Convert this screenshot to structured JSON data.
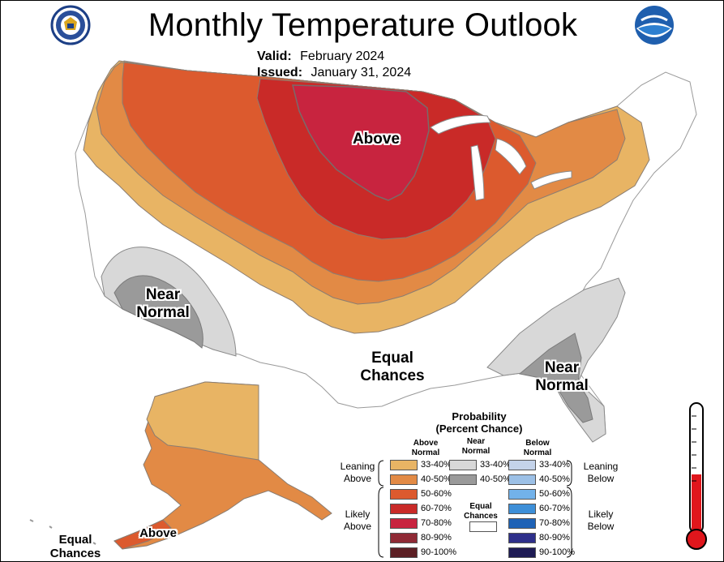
{
  "title": "Monthly Temperature Outlook",
  "valid_label": "Valid:",
  "valid_value": "February 2024",
  "issued_label": "Issued:",
  "issued_value": "January 31, 2024",
  "regions": {
    "above_main": "Above",
    "near_normal_west": "Near Normal",
    "near_normal_southeast": "Near Normal",
    "equal_chances_main": "Equal Chances",
    "equal_chances_alaska": "Equal Chances",
    "above_alaska": "Above"
  },
  "legend": {
    "title": "Probability",
    "subtitle": "(Percent Chance)",
    "col_above": "Above Normal",
    "col_near": "Near Normal",
    "col_below": "Below Normal",
    "leaning_above": "Leaning Above",
    "likely_above": "Likely Above",
    "leaning_below": "Leaning Below",
    "likely_below": "Likely Below",
    "equal_chances": "Equal Chances",
    "above_rows": [
      {
        "range": "33-40%",
        "color": "#e8b464"
      },
      {
        "range": "40-50%",
        "color": "#e28a45"
      },
      {
        "range": "50-60%",
        "color": "#dc5a2e"
      },
      {
        "range": "60-70%",
        "color": "#c92a28"
      },
      {
        "range": "70-80%",
        "color": "#c8243f"
      },
      {
        "range": "80-90%",
        "color": "#8f2a35"
      },
      {
        "range": "90-100%",
        "color": "#5c1f24"
      }
    ],
    "near_rows": [
      {
        "range": "33-40%",
        "color": "#d8d8d8"
      },
      {
        "range": "40-50%",
        "color": "#9a9a9a"
      }
    ],
    "below_rows": [
      {
        "range": "33-40%",
        "color": "#c4d3ea"
      },
      {
        "range": "40-50%",
        "color": "#9cc0e6"
      },
      {
        "range": "50-60%",
        "color": "#72b2ea"
      },
      {
        "range": "60-70%",
        "color": "#3d8fd8"
      },
      {
        "range": "70-80%",
        "color": "#1e62b6"
      },
      {
        "range": "80-90%",
        "color": "#2e2f8a"
      },
      {
        "range": "90-100%",
        "color": "#1e1b54"
      }
    ]
  },
  "colors": {
    "above_33_40": "#e8b464",
    "above_40_50": "#e28a45",
    "above_50_60": "#dc5a2e",
    "above_60_70": "#c92a28",
    "above_70_80": "#c8243f",
    "near_33_40": "#d8d8d8",
    "near_40_50": "#9a9a9a",
    "thermometer_red": "#e0161c"
  },
  "icons": [
    "doc-seal-icon",
    "noaa-logo-icon",
    "thermometer-icon"
  ]
}
